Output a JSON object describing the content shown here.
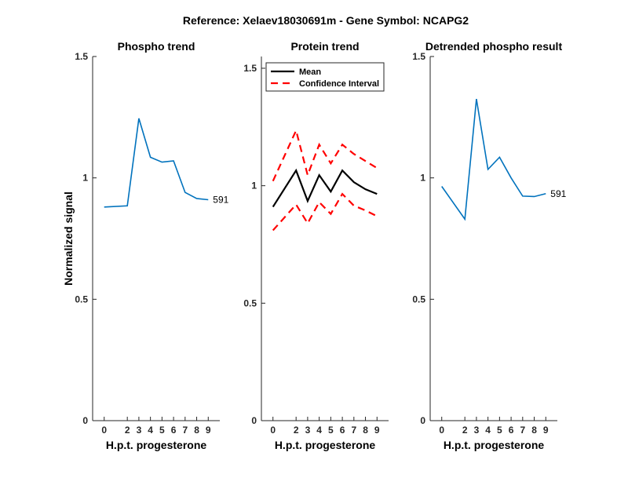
{
  "figure": {
    "suptitle": "Reference:  Xelaev18030691m - Gene Symbol:  NCAPG2"
  },
  "colors": {
    "trend": "#0072bd",
    "mean": "#000000",
    "ci": "#ff0000",
    "axis": "#262626"
  },
  "chart_data": [
    {
      "type": "line",
      "title": "Phospho trend",
      "xlabel": "H.p.t. progesterone",
      "ylabel": "Normalized signal",
      "ylim": [
        0,
        1.5
      ],
      "yticks": [
        0,
        0.5,
        1,
        1.5
      ],
      "yticklabels": [
        "0",
        "0.5",
        "1",
        "1.5"
      ],
      "categories": [
        "0",
        "2",
        "3",
        "4",
        "5",
        "6",
        "7",
        "8",
        "9"
      ],
      "series": [
        {
          "name": "591",
          "values": [
            0.88,
            0.885,
            1.245,
            1.085,
            1.065,
            1.07,
            0.94,
            0.915,
            0.91
          ]
        }
      ],
      "end_label": "591"
    },
    {
      "type": "line",
      "title": "Protein trend",
      "xlabel": "H.p.t. progesterone",
      "ylabel": "",
      "ylim": [
        0,
        1.55
      ],
      "yticks": [
        0,
        0.5,
        1,
        1.5
      ],
      "yticklabels": [
        "0",
        "0.5",
        "1",
        "1.5"
      ],
      "categories": [
        "0",
        "2",
        "3",
        "4",
        "5",
        "6",
        "7",
        "8",
        "9"
      ],
      "legend": {
        "placement": "top-left",
        "items": [
          {
            "label": "Mean",
            "style": "solid"
          },
          {
            "label": "Confidence Interval",
            "style": "dashed"
          }
        ]
      },
      "series": [
        {
          "name": "Mean",
          "values": [
            0.91,
            1.065,
            0.935,
            1.045,
            0.975,
            1.065,
            1.015,
            0.985,
            0.965
          ]
        },
        {
          "name": "CI upper",
          "values": [
            1.02,
            1.235,
            1.045,
            1.175,
            1.095,
            1.175,
            1.135,
            1.105,
            1.075
          ]
        },
        {
          "name": "CI lower",
          "values": [
            0.81,
            0.92,
            0.84,
            0.93,
            0.88,
            0.965,
            0.915,
            0.895,
            0.87
          ]
        }
      ]
    },
    {
      "type": "line",
      "title": "Detrended phospho result",
      "xlabel": "H.p.t. progesterone",
      "ylabel": "",
      "ylim": [
        0,
        1.5
      ],
      "yticks": [
        0,
        0.5,
        1,
        1.5
      ],
      "yticklabels": [
        "0",
        "0.5",
        "1",
        "1.5"
      ],
      "categories": [
        "0",
        "2",
        "3",
        "4",
        "5",
        "6",
        "7",
        "8",
        "9"
      ],
      "series": [
        {
          "name": "591",
          "values": [
            0.965,
            0.83,
            1.325,
            1.035,
            1.085,
            1.0,
            0.925,
            0.923,
            0.935
          ]
        }
      ],
      "end_label": "591"
    }
  ]
}
